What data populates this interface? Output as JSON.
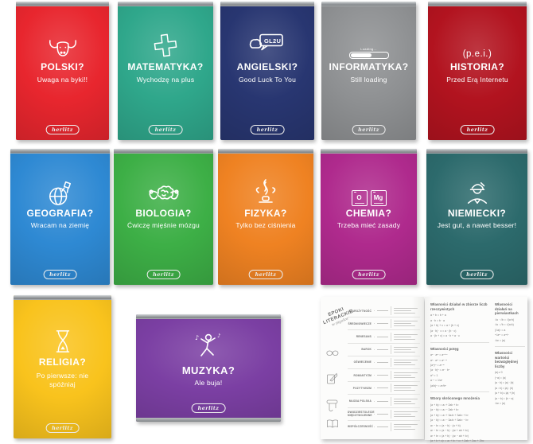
{
  "brand": {
    "logo_text": "herlitz"
  },
  "colors": {
    "polski": "#e8262e",
    "matematyka": "#2fa78b",
    "angielski": "#283671",
    "informatyka": "#8f9193",
    "historia": "#b2131f",
    "geografia": "#2e89d3",
    "biologia": "#3daf46",
    "fizyka": "#ef8222",
    "chemia": "#af2a8d",
    "niemiecki": "#2c6a6c",
    "religia": "#f9c31d",
    "muzyka": "#7b3fa3"
  },
  "notebooks": [
    {
      "title": "POLSKI?",
      "subtitle": "Uwaga na byki!!",
      "icon": "bull-icon"
    },
    {
      "title": "MATEMATYKA?",
      "subtitle": "Wychodzę na plus",
      "icon": "plus-icon"
    },
    {
      "title": "ANGIELSKI?",
      "subtitle": "Good Luck To You",
      "icon": "speech-bubbles-icon",
      "icon_text": "GL2U"
    },
    {
      "title": "INFORMATYKA?",
      "subtitle": "Still loading",
      "icon": "loading-bar-icon",
      "icon_text": "Loading..."
    },
    {
      "title": "HISTORIA?",
      "subtitle": "Przed Erą Internetu",
      "icon": "pei-text-icon",
      "icon_text": "(p.e.i.)"
    },
    {
      "title": "GEOGRAFIA?",
      "subtitle": "Wracam na ziemię",
      "icon": "globe-rocket-icon"
    },
    {
      "title": "BIOLOGIA?",
      "subtitle": "Ćwiczę mięśnie mózgu",
      "icon": "brain-flex-icon"
    },
    {
      "title": "FIZYKA?",
      "subtitle": "Tylko bez ciśnienia",
      "icon": "steam-icon"
    },
    {
      "title": "CHEMIA?",
      "subtitle": "Trzeba mieć zasady",
      "icon": "element-tiles-icon",
      "elements": [
        "O",
        "Mg"
      ]
    },
    {
      "title": "NIEMIECKI?",
      "subtitle": "Jest gut, a nawet besser!",
      "icon": "german-hat-icon"
    },
    {
      "title": "RELIGIA?",
      "subtitle": "Po pierwsze: nie spóźniaj",
      "icon": "hourglass-icon"
    },
    {
      "title": "MUZYKA?",
      "subtitle": "Ale buja!",
      "icon": "dancer-icon"
    }
  ],
  "open_notebook": {
    "left_page": {
      "title_line1": "EPOKI",
      "title_line2": "LITERACKIE",
      "title_sub": "w pigułce",
      "epochs": [
        "STAROŻYTNOŚĆ",
        "ŚREDNIOWIECZE",
        "RENESANS",
        "BAROK",
        "OŚWIECENIE",
        "ROMANTYZM",
        "POZYTYWIZM",
        "MŁODA POLSKA",
        "DWUDZIESTOLECIE MIĘDZYWOJENNE",
        "WSPÓŁCZESNOŚĆ"
      ]
    },
    "right_page": {
      "sections_left": [
        {
          "header": "Własności działań w zbiorze liczb rzeczywistych",
          "formulas": [
            "a + b = b + a",
            "a · b = b · a",
            "(a + b) + c = a + (b + c)",
            "(a · b) · c = a · (b · c)",
            "a · (b + c) = a · b + a · c"
          ]
        },
        {
          "header": "Własności potęg",
          "formulas": [
            "aⁿ · aᵐ = aⁿ⁺ᵐ",
            "aⁿ : aᵐ = aⁿ⁻ᵐ",
            "(aⁿ)ᵐ = aⁿ·ᵐ",
            "(a · b)ⁿ = aⁿ · bⁿ",
            "a⁰ = 1",
            "a⁻ⁿ = 1/aⁿ",
            "(a/b)ⁿ = aⁿ/bⁿ"
          ]
        },
        {
          "header": "Wzory skróconego mnożenia",
          "formulas": [
            "(a + b)² = a² + 2ab + b²",
            "(a − b)² = a² − 2ab + b²",
            "(a + b)³ = a³ + 3a²b + 3ab² + b³",
            "(a − b)³ = a³ − 3a²b + 3ab² − b³",
            "a² − b² = (a − b) · (a + b)",
            "a³ − b³ = (a − b) · (a² + ab + b²)",
            "a³ + b³ = (a + b) · (a² − ab + b²)",
            "(a + b + c)² = a² + b² + c² + 2ab + 2ac + 2bc"
          ]
        }
      ],
      "sections_right": [
        {
          "header": "Własności działań na pierwiastkach",
          "formulas": [
            "√a · √b = √(a·b)",
            "√a : √b = √(a:b)",
            "(√a)² = a",
            "ⁿ√aᵐ = aᵐ/ⁿ",
            "√a² = |a|"
          ]
        },
        {
          "header": "Własności wartości bezwzględnej liczby",
          "formulas": [
            "|a| ≥ 0",
            "|−a| = |a|",
            "|a · b| = |a| · |b|",
            "|a : b| = |a| : |b|",
            "|a + b| ≤ |a| + |b|",
            "|a − b| = |b − a|",
            "√a² = |a|"
          ]
        }
      ]
    }
  }
}
